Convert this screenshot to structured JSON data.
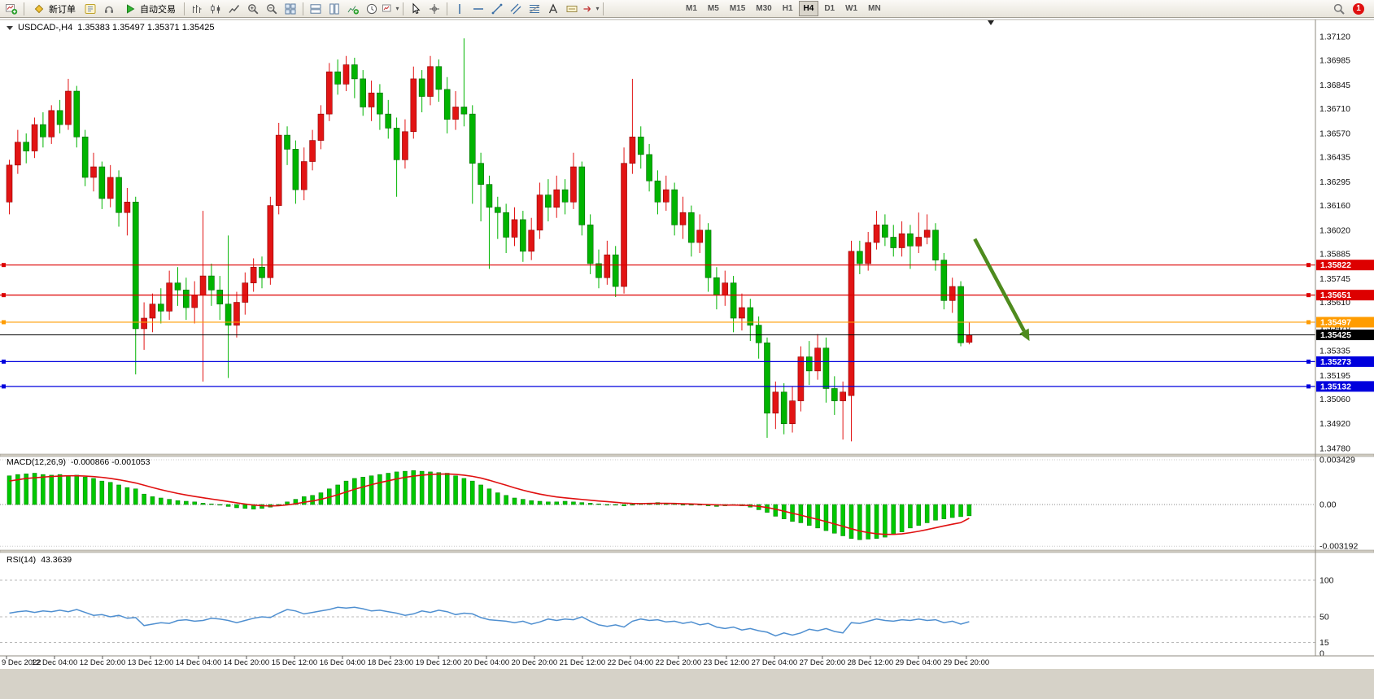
{
  "colors": {
    "bull": "#e21414",
    "bull_border": "#8e0000",
    "bear": "#00b400",
    "bear_border": "#006400",
    "macd_hist": "#00c800",
    "macd_hist_border": "#007800",
    "macd_signal": "#e01010",
    "rsi_line": "#4f8fd0",
    "arrow": "#4e8b1e",
    "line_red": "#dd0000",
    "line_orange": "#ff9c00",
    "line_blue": "#0000dd",
    "bid_black": "#000000"
  },
  "toolbar": {
    "timeframes": [
      "M1",
      "M5",
      "M15",
      "M30",
      "H1",
      "H4",
      "D1",
      "W1",
      "MN"
    ],
    "active_timeframe": "H4",
    "items": [
      {
        "name": "new-chart-icon",
        "type": "icon"
      },
      {
        "type": "sep"
      },
      {
        "name": "new-order-button",
        "type": "button",
        "label": "新订单",
        "icon": "diamond"
      },
      {
        "name": "metaeditor-icon",
        "type": "icon"
      },
      {
        "name": "sound-icon",
        "type": "icon"
      },
      {
        "name": "autotrading-button",
        "type": "button",
        "label": "自动交易",
        "icon": "play"
      },
      {
        "type": "sep"
      },
      {
        "name": "bar-chart-icon",
        "type": "icon"
      },
      {
        "name": "candlestick-chart-icon",
        "type": "icon"
      },
      {
        "name": "line-chart-icon",
        "type": "icon"
      },
      {
        "name": "zoom-in-icon",
        "type": "icon"
      },
      {
        "name": "zoom-out-icon",
        "type": "icon"
      },
      {
        "name": "tile-windows-icon",
        "type": "icon"
      },
      {
        "type": "sep"
      },
      {
        "name": "arrange-horizontal-icon",
        "type": "icon"
      },
      {
        "name": "arrange-vertical-icon",
        "type": "icon"
      },
      {
        "name": "add-indicator-icon",
        "type": "icon"
      },
      {
        "name": "period-icon",
        "type": "icon"
      },
      {
        "name": "templates-icon",
        "type": "icon",
        "dropdown": true
      },
      {
        "type": "sep"
      },
      {
        "name": "cursor-icon",
        "type": "icon"
      },
      {
        "name": "crosshair-icon",
        "type": "icon"
      },
      {
        "type": "sep"
      },
      {
        "name": "vertical-line-icon",
        "type": "icon"
      },
      {
        "name": "horizontal-line-icon",
        "type": "icon"
      },
      {
        "name": "trendline-icon",
        "type": "icon"
      },
      {
        "name": "equidistant-channel-icon",
        "type": "icon"
      },
      {
        "name": "fibonacci-icon",
        "type": "icon"
      },
      {
        "name": "text-icon",
        "type": "icon"
      },
      {
        "name": "text-label-icon",
        "type": "icon"
      },
      {
        "name": "arrows-icon",
        "type": "icon",
        "dropdown": true
      },
      {
        "type": "sep"
      },
      {
        "type": "gap"
      },
      {
        "name": "timeframes",
        "type": "timeframes"
      },
      {
        "type": "flex"
      },
      {
        "name": "search-icon",
        "type": "icon"
      },
      {
        "name": "notification-badge",
        "type": "badge",
        "label": "1"
      }
    ]
  },
  "chart_data": {
    "type": "candlestick",
    "title": "USDCAD-,H4",
    "ohlc_text": "1.35383 1.35497 1.35371 1.35425",
    "y_tick_labels": [
      "1.37120",
      "1.36985",
      "1.36845",
      "1.36710",
      "1.36570",
      "1.36435",
      "1.36295",
      "1.36160",
      "1.36020",
      "1.35885",
      "1.35745",
      "1.35610",
      "1.35470",
      "1.35335",
      "1.35195",
      "1.35060",
      "1.34920",
      "1.34780"
    ],
    "x_labels": [
      "9 Dec 2022",
      "12 Dec 04:00",
      "12 Dec 20:00",
      "13 Dec 12:00",
      "14 Dec 04:00",
      "14 Dec 20:00",
      "15 Dec 12:00",
      "16 Dec 04:00",
      "18 Dec 23:00",
      "19 Dec 12:00",
      "20 Dec 04:00",
      "20 Dec 20:00",
      "21 Dec 12:00",
      "22 Dec 04:00",
      "22 Dec 20:00",
      "23 Dec 12:00",
      "27 Dec 04:00",
      "27 Dec 20:00",
      "28 Dec 12:00",
      "29 Dec 04:00",
      "29 Dec 20:00"
    ],
    "h_lines": [
      {
        "price": 1.35822,
        "label": "1.35822",
        "color": "#dd0000"
      },
      {
        "price": 1.35651,
        "label": "1.35651",
        "color": "#dd0000"
      },
      {
        "price": 1.35497,
        "label": "1.35497",
        "color": "#ff9c00"
      },
      {
        "price": 1.35273,
        "label": "1.35273",
        "color": "#0000dd"
      },
      {
        "price": 1.35132,
        "label": "1.35132",
        "color": "#0000dd"
      }
    ],
    "bid": {
      "price": 1.35425,
      "label": "1.35425",
      "color": "#000000"
    },
    "arrow": {
      "bar1": 115,
      "price1": 1.3597,
      "bar2": 121.5,
      "price2": 1.3539
    },
    "candles": [
      [
        1.3618,
        1.3642,
        1.3611,
        1.3639
      ],
      [
        1.3639,
        1.3659,
        1.3634,
        1.3652
      ],
      [
        1.3652,
        1.3657,
        1.364,
        1.3647
      ],
      [
        1.3647,
        1.3666,
        1.3643,
        1.3662
      ],
      [
        1.3662,
        1.3669,
        1.3649,
        1.3655
      ],
      [
        1.3655,
        1.3673,
        1.3651,
        1.367
      ],
      [
        1.367,
        1.3676,
        1.3657,
        1.3662
      ],
      [
        1.3662,
        1.3688,
        1.3659,
        1.3681
      ],
      [
        1.3681,
        1.3684,
        1.3649,
        1.3655
      ],
      [
        1.3655,
        1.3659,
        1.3627,
        1.3632
      ],
      [
        1.3632,
        1.3646,
        1.3624,
        1.3638
      ],
      [
        1.3638,
        1.3641,
        1.3614,
        1.362
      ],
      [
        1.362,
        1.3639,
        1.3615,
        1.3632
      ],
      [
        1.3632,
        1.3636,
        1.3604,
        1.3612
      ],
      [
        1.3612,
        1.3626,
        1.3599,
        1.3618
      ],
      [
        1.3618,
        1.3621,
        1.352,
        1.3546
      ],
      [
        1.3546,
        1.3561,
        1.3534,
        1.3552
      ],
      [
        1.3552,
        1.3566,
        1.3544,
        1.356
      ],
      [
        1.356,
        1.3569,
        1.3549,
        1.3556
      ],
      [
        1.3556,
        1.3579,
        1.3551,
        1.3572
      ],
      [
        1.3572,
        1.3581,
        1.3559,
        1.3568
      ],
      [
        1.3568,
        1.3575,
        1.3551,
        1.3558
      ],
      [
        1.3558,
        1.3573,
        1.3549,
        1.3565
      ],
      [
        1.3565,
        1.3613,
        1.3516,
        1.3576
      ],
      [
        1.3576,
        1.3583,
        1.3559,
        1.3568
      ],
      [
        1.3568,
        1.3576,
        1.3551,
        1.356
      ],
      [
        1.356,
        1.3599,
        1.3518,
        1.3548
      ],
      [
        1.3548,
        1.3567,
        1.3541,
        1.3561
      ],
      [
        1.3561,
        1.3578,
        1.3554,
        1.3572
      ],
      [
        1.3572,
        1.3586,
        1.3567,
        1.3581
      ],
      [
        1.3581,
        1.3587,
        1.3569,
        1.3575
      ],
      [
        1.3575,
        1.3621,
        1.3571,
        1.3616
      ],
      [
        1.3616,
        1.3663,
        1.3611,
        1.3656
      ],
      [
        1.3656,
        1.3661,
        1.3639,
        1.3648
      ],
      [
        1.3648,
        1.3653,
        1.3617,
        1.3625
      ],
      [
        1.3625,
        1.3649,
        1.3619,
        1.3641
      ],
      [
        1.3641,
        1.3659,
        1.3636,
        1.3653
      ],
      [
        1.3653,
        1.3673,
        1.3648,
        1.3668
      ],
      [
        1.3668,
        1.3697,
        1.3664,
        1.3692
      ],
      [
        1.3692,
        1.3699,
        1.3679,
        1.3685
      ],
      [
        1.3685,
        1.3701,
        1.3681,
        1.3696
      ],
      [
        1.3696,
        1.37,
        1.3677,
        1.3688
      ],
      [
        1.3688,
        1.3693,
        1.3667,
        1.3672
      ],
      [
        1.3672,
        1.3687,
        1.3664,
        1.368
      ],
      [
        1.368,
        1.3685,
        1.3659,
        1.3668
      ],
      [
        1.3668,
        1.3676,
        1.3654,
        1.366
      ],
      [
        1.366,
        1.3666,
        1.3621,
        1.3642
      ],
      [
        1.3642,
        1.3665,
        1.3637,
        1.3658
      ],
      [
        1.3658,
        1.3695,
        1.3654,
        1.3688
      ],
      [
        1.3688,
        1.3693,
        1.3669,
        1.3678
      ],
      [
        1.3678,
        1.3701,
        1.3673,
        1.3695
      ],
      [
        1.3695,
        1.3699,
        1.3675,
        1.3682
      ],
      [
        1.3682,
        1.3689,
        1.3657,
        1.3665
      ],
      [
        1.3665,
        1.3681,
        1.3659,
        1.3672
      ],
      [
        1.3672,
        1.3711,
        1.3661,
        1.3668
      ],
      [
        1.3668,
        1.3673,
        1.3617,
        1.364
      ],
      [
        1.364,
        1.3646,
        1.3607,
        1.3628
      ],
      [
        1.3628,
        1.3633,
        1.358,
        1.3615
      ],
      [
        1.3615,
        1.3621,
        1.3597,
        1.3612
      ],
      [
        1.3612,
        1.3617,
        1.3589,
        1.3598
      ],
      [
        1.3598,
        1.3615,
        1.3593,
        1.3608
      ],
      [
        1.3608,
        1.3613,
        1.3584,
        1.359
      ],
      [
        1.359,
        1.3609,
        1.3585,
        1.3602
      ],
      [
        1.3602,
        1.3629,
        1.3597,
        1.3622
      ],
      [
        1.3622,
        1.3631,
        1.3607,
        1.3615
      ],
      [
        1.3615,
        1.3633,
        1.3609,
        1.3625
      ],
      [
        1.3625,
        1.3631,
        1.3611,
        1.3618
      ],
      [
        1.3618,
        1.3646,
        1.3614,
        1.3638
      ],
      [
        1.3638,
        1.3641,
        1.3599,
        1.3605
      ],
      [
        1.3605,
        1.3611,
        1.3577,
        1.3583
      ],
      [
        1.3583,
        1.3591,
        1.3569,
        1.3575
      ],
      [
        1.3575,
        1.3596,
        1.3571,
        1.3588
      ],
      [
        1.3588,
        1.3593,
        1.3564,
        1.357
      ],
      [
        1.357,
        1.3649,
        1.3566,
        1.364
      ],
      [
        1.364,
        1.3688,
        1.3634,
        1.3655
      ],
      [
        1.3655,
        1.3661,
        1.3637,
        1.3645
      ],
      [
        1.3645,
        1.3651,
        1.3624,
        1.363
      ],
      [
        1.363,
        1.3636,
        1.3611,
        1.3618
      ],
      [
        1.3618,
        1.3633,
        1.3613,
        1.3625
      ],
      [
        1.3625,
        1.3629,
        1.3599,
        1.3605
      ],
      [
        1.3605,
        1.3621,
        1.3597,
        1.3612
      ],
      [
        1.3612,
        1.3616,
        1.3587,
        1.3595
      ],
      [
        1.3595,
        1.3611,
        1.3589,
        1.3602
      ],
      [
        1.3602,
        1.3606,
        1.3567,
        1.3575
      ],
      [
        1.3575,
        1.3581,
        1.3557,
        1.3565
      ],
      [
        1.3565,
        1.3579,
        1.3559,
        1.3572
      ],
      [
        1.3572,
        1.3576,
        1.3544,
        1.3552
      ],
      [
        1.3552,
        1.3566,
        1.3545,
        1.3558
      ],
      [
        1.3558,
        1.3563,
        1.3539,
        1.3548
      ],
      [
        1.3548,
        1.3553,
        1.3529,
        1.3538
      ],
      [
        1.3538,
        1.3541,
        1.3484,
        1.3498
      ],
      [
        1.3498,
        1.3516,
        1.3489,
        1.351
      ],
      [
        1.351,
        1.3515,
        1.3486,
        1.3492
      ],
      [
        1.3492,
        1.3513,
        1.3487,
        1.3505
      ],
      [
        1.3505,
        1.3536,
        1.3499,
        1.353
      ],
      [
        1.353,
        1.3539,
        1.3514,
        1.3522
      ],
      [
        1.3522,
        1.3543,
        1.3517,
        1.3535
      ],
      [
        1.3535,
        1.3541,
        1.3504,
        1.3512
      ],
      [
        1.3512,
        1.3519,
        1.3497,
        1.3505
      ],
      [
        1.3505,
        1.3516,
        1.3483,
        1.351
      ],
      [
        1.3508,
        1.3596,
        1.3482,
        1.359
      ],
      [
        1.359,
        1.3596,
        1.3577,
        1.3583
      ],
      [
        1.3583,
        1.3601,
        1.3579,
        1.3595
      ],
      [
        1.3595,
        1.3613,
        1.3591,
        1.3605
      ],
      [
        1.3605,
        1.3611,
        1.3593,
        1.3598
      ],
      [
        1.3598,
        1.3605,
        1.3587,
        1.3592
      ],
      [
        1.3592,
        1.3607,
        1.3587,
        1.36
      ],
      [
        1.36,
        1.3605,
        1.358,
        1.3593
      ],
      [
        1.3593,
        1.3612,
        1.3589,
        1.3598
      ],
      [
        1.3598,
        1.3611,
        1.3594,
        1.3602
      ],
      [
        1.3602,
        1.3606,
        1.3579,
        1.3585
      ],
      [
        1.3585,
        1.3589,
        1.3557,
        1.3562
      ],
      [
        1.3562,
        1.3575,
        1.3555,
        1.357
      ],
      [
        1.357,
        1.3573,
        1.3536,
        1.3538
      ],
      [
        1.35383,
        1.35497,
        1.35371,
        1.35425
      ]
    ],
    "macd": {
      "label": "MACD(12,26,9)",
      "values_text": "-0.000866 -0.001053",
      "unit": 0.0001,
      "y_tick_labels": [
        "0.003429",
        "0.00",
        "-0.003192"
      ],
      "y_tick_values": [
        0.003429,
        0,
        -0.003192
      ],
      "main": [
        22,
        23,
        23.5,
        24,
        23,
        22.5,
        23,
        22,
        22.5,
        21,
        20,
        18,
        17,
        15,
        13,
        12,
        8,
        6,
        5,
        4,
        3,
        2.5,
        2,
        1,
        0.5,
        -0.5,
        -1.5,
        -2.5,
        -3,
        -3.5,
        -3,
        -2,
        0,
        2,
        4,
        6,
        7,
        9,
        12,
        15,
        18,
        20,
        21,
        22,
        23,
        24,
        25,
        25.5,
        26,
        25.5,
        25,
        24.5,
        24,
        22,
        20,
        18,
        15,
        12,
        9,
        7,
        5,
        4,
        3,
        2.5,
        2,
        2,
        2.5,
        2,
        1.5,
        1,
        0.5,
        0,
        -0.5,
        -1,
        -0.5,
        0.5,
        1,
        1.5,
        1,
        0.5,
        0,
        -0.5,
        -0.5,
        -1,
        -1.5,
        -1,
        -0.5,
        -1,
        -2,
        -4,
        -6,
        -9,
        -11,
        -13,
        -14,
        -16,
        -18,
        -20,
        -22,
        -24,
        -26,
        -27,
        -26.5,
        -26,
        -25,
        -23,
        -21,
        -18,
        -16,
        -14,
        -12,
        -11,
        -10,
        -9.3,
        -8.66
      ],
      "signal": [
        18,
        19,
        20,
        20.5,
        21,
        21.5,
        21.8,
        22,
        22,
        21.8,
        21.4,
        20.8,
        20,
        19,
        17.8,
        16.5,
        14.8,
        13,
        11.4,
        9.9,
        8.5,
        7.3,
        6.2,
        5.2,
        4.2,
        3.3,
        2.3,
        1.3,
        0.4,
        -0.4,
        -0.9,
        -1.1,
        -0.9,
        -0.3,
        0.6,
        1.7,
        2.7,
        4,
        5.6,
        7.5,
        9.6,
        11.7,
        13.5,
        15.2,
        16.8,
        18.2,
        19.6,
        20.8,
        21.8,
        22.5,
        23,
        23.3,
        23.4,
        23.1,
        22.5,
        21.6,
        20.3,
        18.6,
        16.7,
        14.8,
        12.8,
        11,
        9.4,
        8,
        6.8,
        5.8,
        5.1,
        4.5,
        3.9,
        3.3,
        2.7,
        2.2,
        1.7,
        1.1,
        0.8,
        0.7,
        0.8,
        0.9,
        0.9,
        0.8,
        0.6,
        0.4,
        0.2,
        0,
        -0.3,
        -0.4,
        -0.4,
        -0.5,
        -0.8,
        -1.4,
        -2.3,
        -3.6,
        -5.1,
        -6.7,
        -8.2,
        -9.8,
        -11.4,
        -13.1,
        -14.9,
        -16.7,
        -18.6,
        -20.3,
        -21.5,
        -22.4,
        -22.9,
        -22.9,
        -22.5,
        -21.6,
        -20.5,
        -19.2,
        -17.8,
        -16.4,
        -15.1,
        -13.9,
        -10.53
      ]
    },
    "rsi": {
      "label": "RSI(14)",
      "value_text": "43.3639",
      "y_tick_labels": [
        "100",
        "50",
        "15",
        "0"
      ],
      "y_tick_values": [
        100,
        50,
        15,
        0
      ],
      "level_lines": [
        100,
        50,
        15
      ],
      "values": [
        55,
        57,
        58,
        56,
        58,
        57,
        59,
        57,
        60,
        56,
        52,
        53,
        50,
        52,
        48,
        49,
        38,
        40,
        42,
        41,
        45,
        46,
        44,
        45,
        48,
        47,
        45,
        42,
        45,
        48,
        50,
        49,
        55,
        60,
        58,
        54,
        56,
        58,
        60,
        63,
        62,
        63,
        61,
        58,
        59,
        57,
        55,
        52,
        54,
        58,
        56,
        59,
        57,
        53,
        55,
        54,
        49,
        46,
        45,
        44,
        42,
        44,
        40,
        43,
        47,
        45,
        47,
        46,
        50,
        44,
        39,
        37,
        39,
        36,
        44,
        47,
        45,
        46,
        43,
        44,
        41,
        43,
        39,
        41,
        36,
        34,
        36,
        32,
        34,
        31,
        29,
        24,
        28,
        25,
        28,
        33,
        31,
        34,
        30,
        28,
        42,
        41,
        44,
        47,
        45,
        44,
        46,
        45,
        47,
        45,
        46,
        42,
        44,
        40,
        43.36
      ]
    }
  }
}
